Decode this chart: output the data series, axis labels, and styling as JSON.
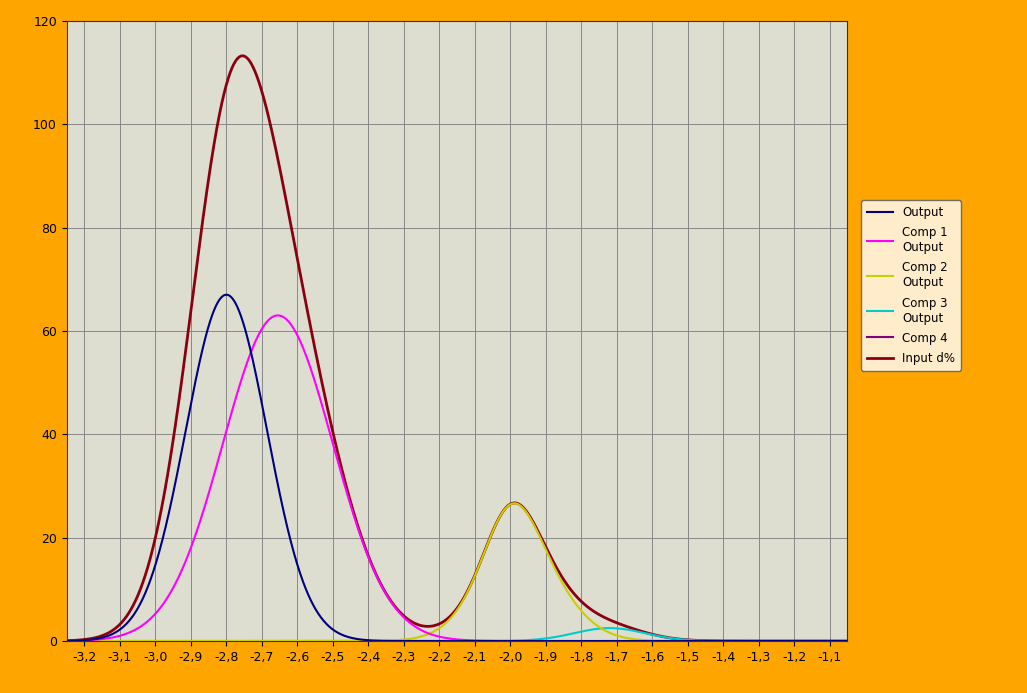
{
  "background_color": "#FFA500",
  "plot_bg_color": "#DEDED0",
  "xlim": [
    -3.25,
    -1.05
  ],
  "ylim": [
    0,
    120
  ],
  "xtick_labels": [
    "-3,2",
    "-3,1",
    "-3,0",
    "-2,9",
    "-2,8",
    "-2,7",
    "-2,6",
    "-2,5",
    "-2,4",
    "-2,3",
    "-2,2",
    "-2,1",
    "-2,0",
    "-1,9",
    "-1,8",
    "-1,7",
    "-1,6",
    "-1,5",
    "-1,4",
    "-1,3",
    "-1,2",
    "-1,1"
  ],
  "xtick_values": [
    -3.2,
    -3.1,
    -3.0,
    -2.9,
    -2.8,
    -2.7,
    -2.6,
    -2.5,
    -2.4,
    -2.3,
    -2.2,
    -2.1,
    -2.0,
    -1.9,
    -1.8,
    -1.7,
    -1.6,
    -1.5,
    -1.4,
    -1.3,
    -1.2,
    -1.1
  ],
  "ytick_values": [
    0,
    20,
    40,
    60,
    80,
    100,
    120
  ],
  "grid_color": "#888888",
  "line_colors_output": "#000080",
  "line_colors_comp1": "#FF00FF",
  "line_colors_comp2": "#CCCC00",
  "line_colors_comp3": "#00CCCC",
  "line_colors_comp4": "#800080",
  "line_colors_input": "#8B0010",
  "comp1_mean": -2.8,
  "comp1_std": 0.115,
  "comp1_amp": 67.0,
  "comp2_mean": -2.655,
  "comp2_std": 0.155,
  "comp2_amp": 63.0,
  "comp3_mean": -2.0,
  "comp3_std": 0.07,
  "comp3_amp": 10.0,
  "comp4_mean": -1.97,
  "comp4_std": 0.115,
  "comp4_amp": 17.0,
  "comp5_mean": -1.72,
  "comp5_std": 0.1,
  "comp5_amp": 2.5,
  "legend_entry1a": "Output",
  "legend_entry1b": "Comp 1",
  "legend_entry2a": "Output",
  "legend_entry2b": "Comp 2",
  "legend_entry3a": "Output",
  "legend_entry3b": "Comp 3",
  "legend_entry4a": "Output",
  "legend_entry4b": "Comp 4",
  "legend_entry5": "Input d%"
}
